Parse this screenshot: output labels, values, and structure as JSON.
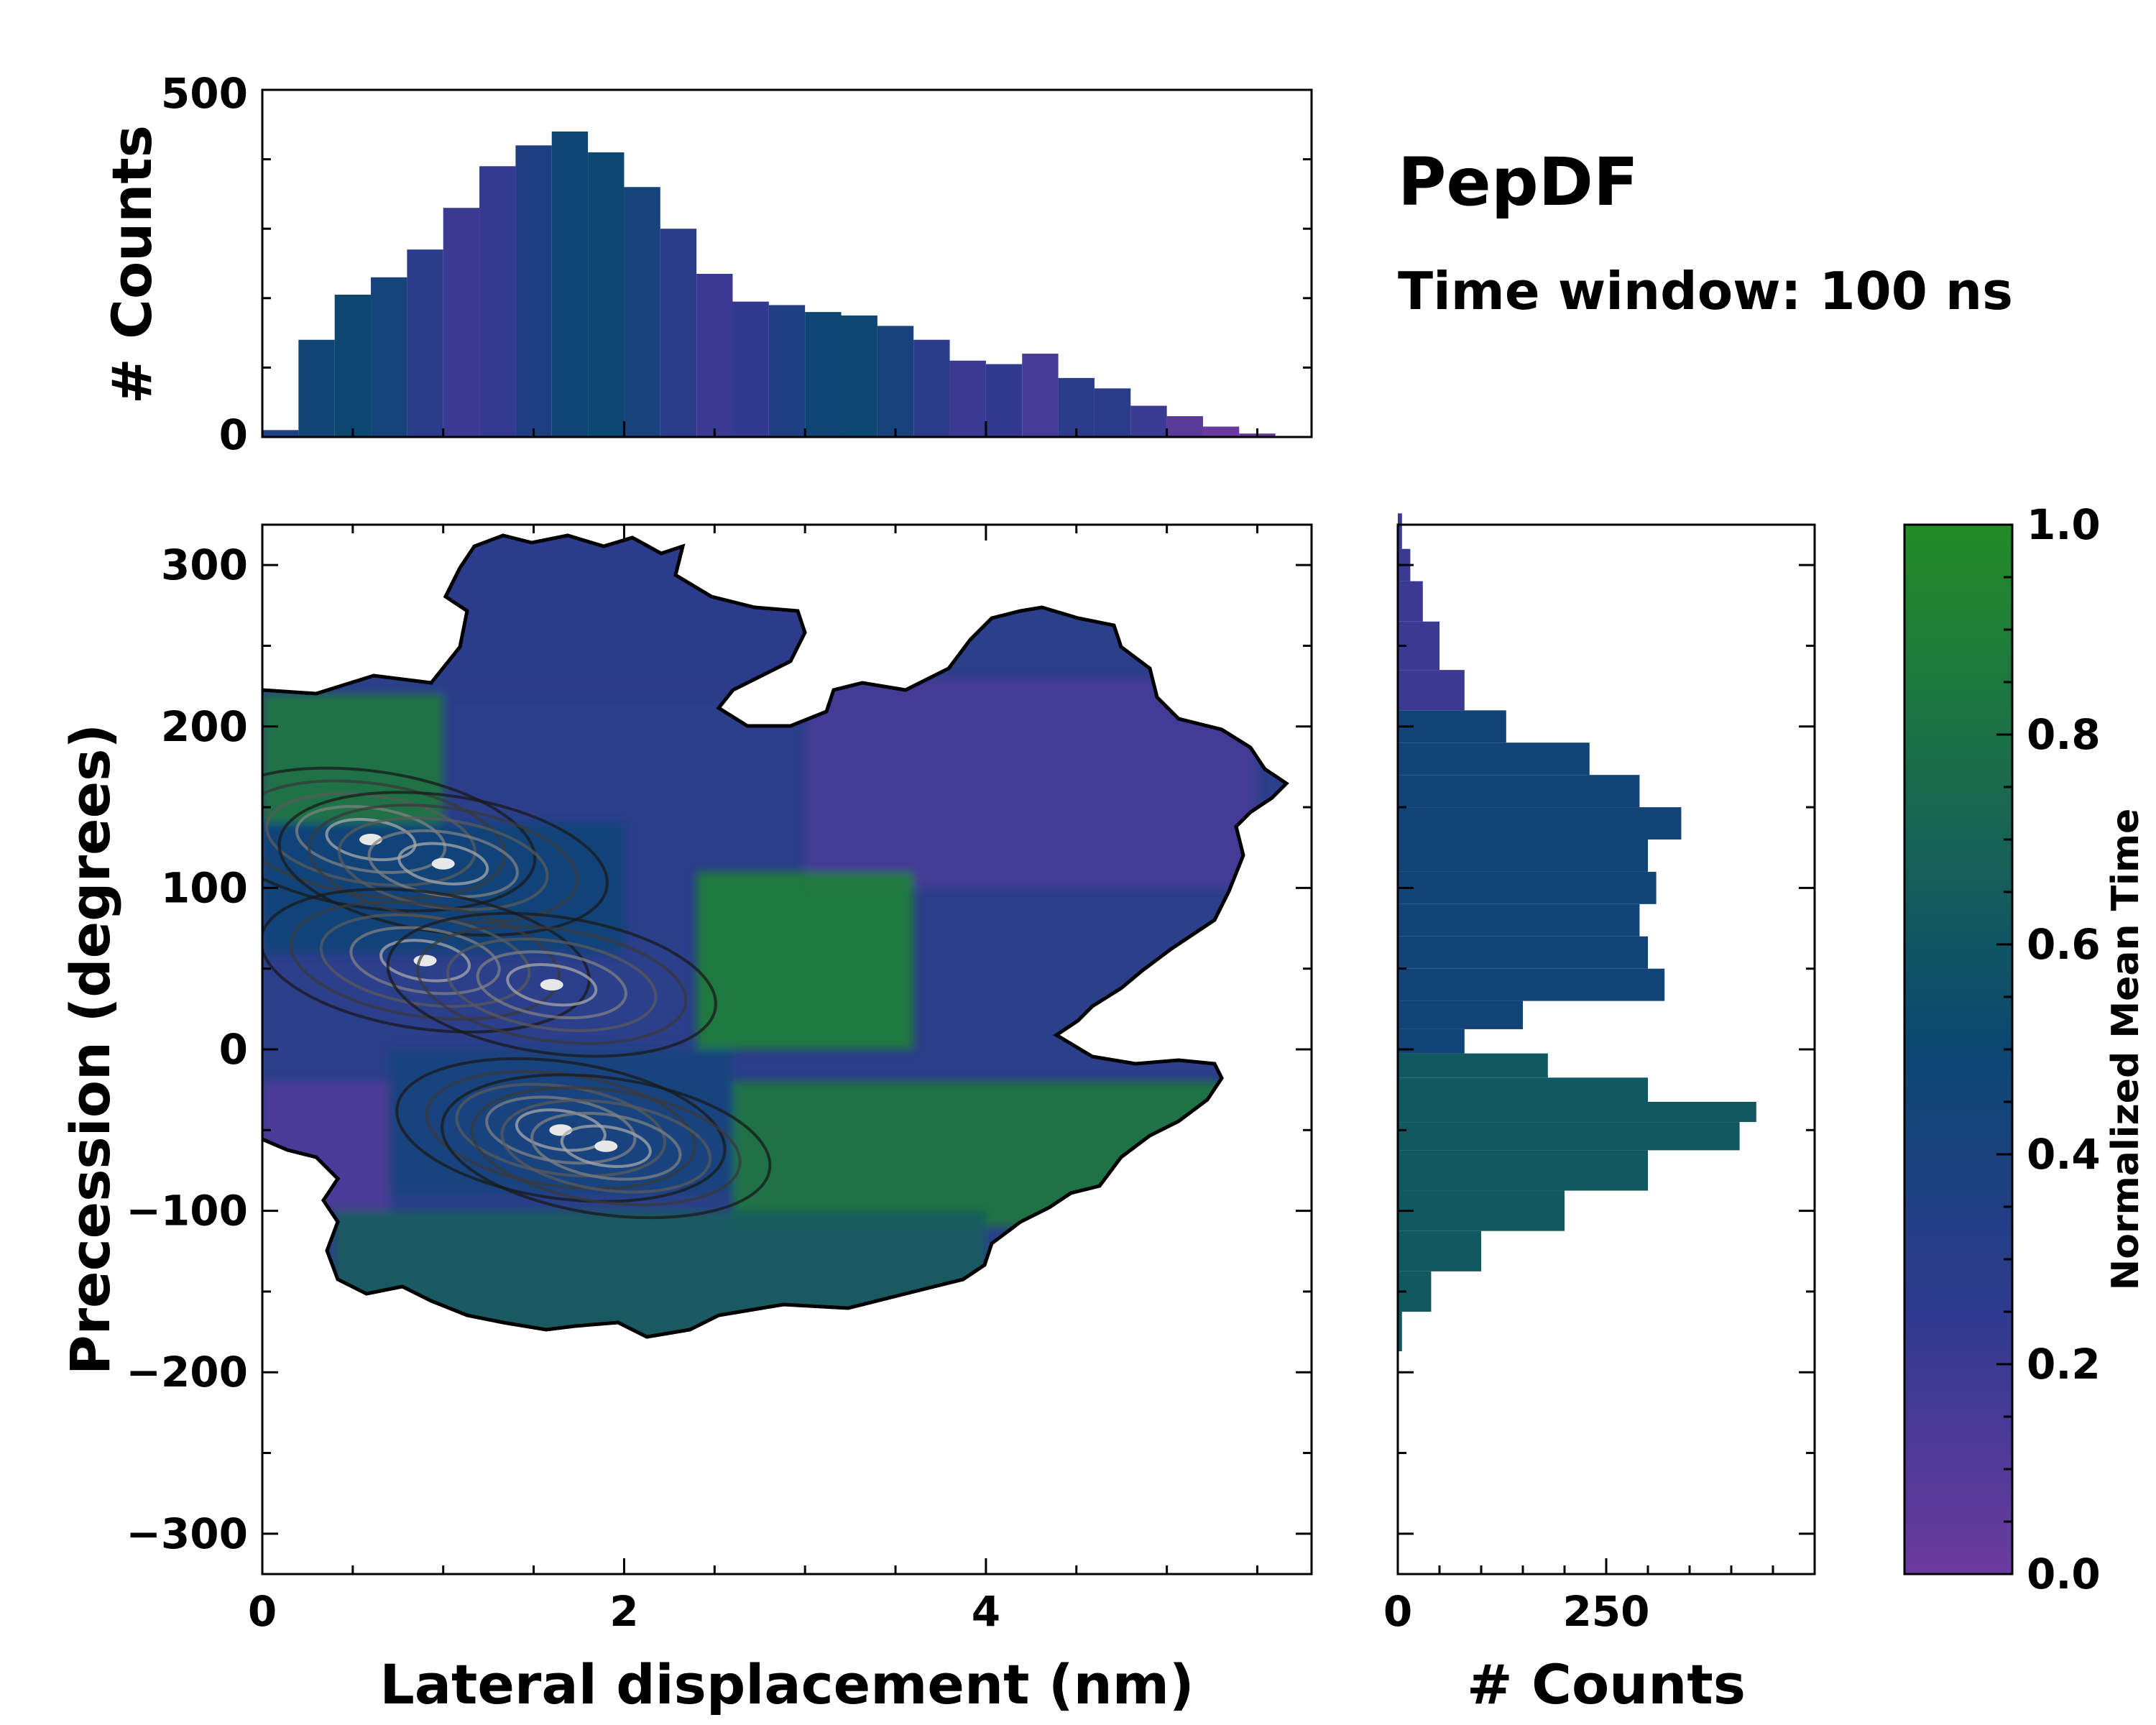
{
  "chart_data": [
    {
      "id": "top-histogram",
      "type": "bar",
      "title": "",
      "xlabel": "",
      "ylabel": "# Counts",
      "xlim": [
        0,
        5.8
      ],
      "ylim": [
        0,
        500
      ],
      "yticks": [
        0,
        500
      ],
      "bin_centers_nm": [
        0.0,
        0.2,
        0.4,
        0.6,
        0.8,
        1.0,
        1.2,
        1.4,
        1.6,
        1.8,
        2.0,
        2.2,
        2.4,
        2.6,
        2.8,
        3.0,
        3.2,
        3.4,
        3.6,
        3.8,
        4.0,
        4.2,
        4.4,
        4.6,
        4.8,
        5.0,
        5.2,
        5.4,
        5.6
      ],
      "counts": [
        10,
        140,
        205,
        230,
        270,
        330,
        390,
        420,
        440,
        410,
        360,
        300,
        235,
        195,
        190,
        180,
        175,
        160,
        140,
        110,
        105,
        120,
        85,
        70,
        45,
        30,
        15,
        5,
        0
      ],
      "bar_color_scale": "Normalized Mean Time"
    },
    {
      "id": "main-heatmap",
      "type": "heatmap",
      "xlabel": "Lateral displacement (nm)",
      "ylabel": "Precession (degrees)",
      "xlim": [
        0,
        5.8
      ],
      "ylim": [
        -325,
        325
      ],
      "xticks": [
        0,
        2,
        4
      ],
      "yticks": [
        -300,
        -200,
        -100,
        0,
        100,
        200,
        300
      ],
      "color_label": "Normalized Mean Time",
      "regions": [
        {
          "x": [
            0.0,
            1.0
          ],
          "y": [
            140,
            220
          ],
          "mean_time": 0.85
        },
        {
          "x": [
            0.0,
            2.0
          ],
          "y": [
            60,
            140
          ],
          "mean_time": 0.45
        },
        {
          "x": [
            1.0,
            3.0
          ],
          "y": [
            220,
            320
          ],
          "mean_time": 0.28
        },
        {
          "x": [
            3.0,
            5.5
          ],
          "y": [
            100,
            230
          ],
          "mean_time": 0.15
        },
        {
          "x": [
            2.4,
            3.6
          ],
          "y": [
            0,
            110
          ],
          "mean_time": 0.9
        },
        {
          "x": [
            0.0,
            0.7
          ],
          "y": [
            -100,
            -20
          ],
          "mean_time": 0.12
        },
        {
          "x": [
            0.7,
            2.6
          ],
          "y": [
            -90,
            0
          ],
          "mean_time": 0.4
        },
        {
          "x": [
            2.6,
            5.3
          ],
          "y": [
            -110,
            -20
          ],
          "mean_time": 0.85
        },
        {
          "x": [
            0.4,
            4.0
          ],
          "y": [
            -180,
            -100
          ],
          "mean_time": 0.65
        }
      ],
      "density_peaks": [
        {
          "x": 0.6,
          "y": 130
        },
        {
          "x": 1.0,
          "y": 115
        },
        {
          "x": 0.9,
          "y": 55
        },
        {
          "x": 1.6,
          "y": 40
        },
        {
          "x": 1.65,
          "y": -50
        },
        {
          "x": 1.9,
          "y": -60
        }
      ]
    },
    {
      "id": "right-histogram",
      "type": "bar",
      "orientation": "horizontal",
      "xlabel": "# Counts",
      "ylabel": "",
      "xlim": [
        0,
        500
      ],
      "xticks": [
        0,
        250
      ],
      "ylim": [
        -325,
        325
      ],
      "bin_centers_deg": [
        -175,
        -150,
        -125,
        -100,
        -75,
        -50,
        -40,
        -25,
        -10,
        5,
        20,
        40,
        60,
        80,
        100,
        120,
        140,
        160,
        180,
        200,
        220,
        250,
        280,
        300,
        320
      ],
      "counts": [
        5,
        40,
        100,
        200,
        300,
        410,
        430,
        300,
        180,
        80,
        150,
        320,
        300,
        290,
        310,
        300,
        340,
        290,
        230,
        130,
        80,
        50,
        30,
        15,
        5
      ],
      "bar_color_scale": "Normalized Mean Time"
    },
    {
      "id": "colorbar",
      "type": "colorbar",
      "label": "Normalized Mean Time",
      "range": [
        0.0,
        1.0
      ],
      "ticks": [
        "0.0",
        "0.2",
        "0.4",
        "0.6",
        "0.8",
        "1.0"
      ],
      "colors": {
        "low": "#6b3aa0",
        "mid": "#0b4771",
        "high": "#238c27"
      }
    }
  ],
  "annotations": {
    "title": "PepDF",
    "subtitle": "Time window: 100 ns"
  }
}
